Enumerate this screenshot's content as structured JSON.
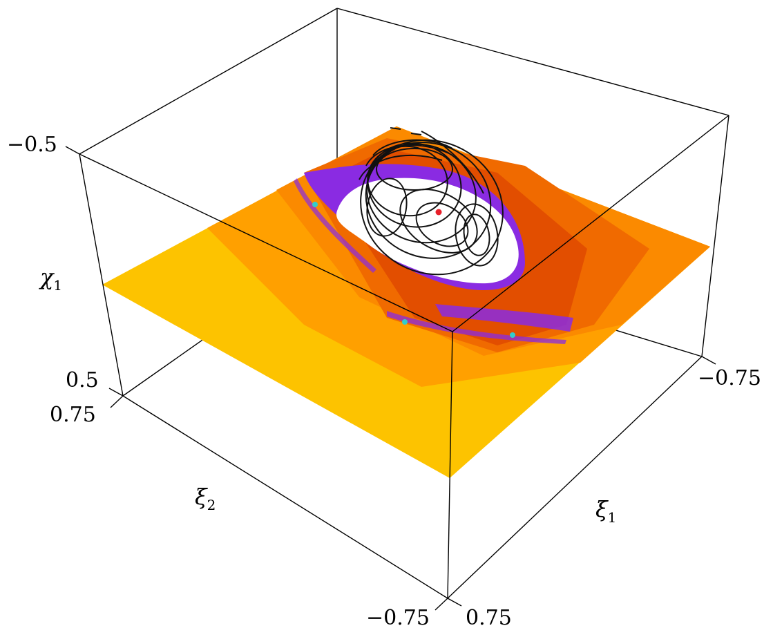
{
  "axes": {
    "chi1": {
      "symbol": "χ",
      "subscript": "1",
      "tick_top": "−0.5",
      "tick_bottom": "0.5"
    },
    "xi2": {
      "symbol": "ξ",
      "subscript": "2",
      "tick_near": "0.75",
      "tick_far": "−0.75"
    },
    "xi1": {
      "symbol": "ξ",
      "subscript": "1",
      "tick_near": "0.75",
      "tick_far": "−0.75"
    }
  },
  "colors": {
    "plane_light": "#FDC300",
    "plane_mid": "#FFA000",
    "plane_orange": "#FB8A00",
    "plane_dark": "#F06A00",
    "plane_deep": "#E24E00",
    "chaos_band": "#8A2BE2",
    "island": "#FFFFFF",
    "orbits": "#111111",
    "fixed_point": "#E8202A",
    "periodic_points": "#33CCCC"
  }
}
